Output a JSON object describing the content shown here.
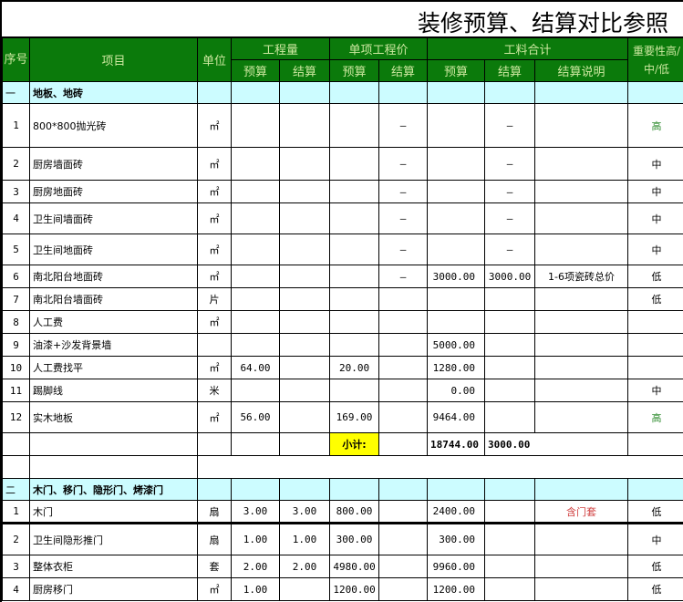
{
  "title": "装修预算、结算对比参照",
  "headers": {
    "seq": "序号",
    "item": "项目",
    "unit": "单位",
    "quantity": "工程量",
    "unit_price": "单项工程价",
    "total": "工料合计",
    "importance": "重要性高/中/低",
    "budget": "预算",
    "settlement": "结算",
    "settlement_note": "结算说明"
  },
  "colors": {
    "header_bg": "#0b7a0b",
    "section_bg": "#ccfcff",
    "subtotal_bg": "#ffff00",
    "high": "#2e8b2e",
    "note_red": "#d04040"
  },
  "sections": [
    {
      "seq": "一",
      "name": "地板、地砖",
      "rows": [
        {
          "seq": "1",
          "item": "800*800抛光砖",
          "unit": "㎡",
          "qb": "",
          "qs": "",
          "pb": "",
          "ps": "—",
          "tb": "",
          "ts": "—",
          "note": "",
          "imp": "高",
          "h": 48
        },
        {
          "seq": "2",
          "item": "厨房墙面砖",
          "unit": "㎡",
          "qb": "",
          "qs": "",
          "pb": "",
          "ps": "—",
          "tb": "",
          "ts": "—",
          "note": "",
          "imp": "中",
          "h": 36
        },
        {
          "seq": "3",
          "item": "厨房地面砖",
          "unit": "㎡",
          "qb": "",
          "qs": "",
          "pb": "",
          "ps": "—",
          "tb": "",
          "ts": "—",
          "note": "",
          "imp": "中",
          "h": 25
        },
        {
          "seq": "4",
          "item": "卫生间墙面砖",
          "unit": "㎡",
          "qb": "",
          "qs": "",
          "pb": "",
          "ps": "—",
          "tb": "",
          "ts": "—",
          "note": "",
          "imp": "中",
          "h": 34
        },
        {
          "seq": "5",
          "item": "卫生间地面砖",
          "unit": "㎡",
          "qb": "",
          "qs": "",
          "pb": "",
          "ps": "—",
          "tb": "",
          "ts": "—",
          "note": "",
          "imp": "中",
          "h": 34
        },
        {
          "seq": "6",
          "item": "南北阳台地面砖",
          "unit": "㎡",
          "qb": "",
          "qs": "",
          "pb": "",
          "ps": "—",
          "tb": "3000.00",
          "ts": "3000.00",
          "note": "1-6项瓷砖总价",
          "imp": "低",
          "h": 25
        },
        {
          "seq": "7",
          "item": "南北阳台墙面砖",
          "unit": "片",
          "qb": "",
          "qs": "",
          "pb": "",
          "ps": "",
          "tb": "",
          "ts": "",
          "note": "",
          "imp": "低",
          "h": 25
        },
        {
          "seq": "8",
          "item": "人工费",
          "unit": "㎡",
          "qb": "",
          "qs": "",
          "pb": "",
          "ps": "",
          "tb": "",
          "ts": "",
          "note": "",
          "imp": "",
          "h": 25
        },
        {
          "seq": "9",
          "item": "油漆+沙发背景墙",
          "unit": "",
          "qb": "",
          "qs": "",
          "pb": "",
          "ps": "",
          "tb": "5000.00",
          "ts": "",
          "note": "",
          "imp": "",
          "h": 25
        },
        {
          "seq": "10",
          "item": "人工费找平",
          "unit": "㎡",
          "qb": "64.00",
          "qs": "",
          "pb": "20.00",
          "ps": "",
          "tb": "1280.00",
          "ts": "",
          "note": "",
          "imp": "",
          "h": 25
        },
        {
          "seq": "11",
          "item": "踢脚线",
          "unit": "米",
          "qb": "",
          "qs": "",
          "pb": "",
          "ps": "",
          "tb": "0.00",
          "ts": "",
          "note": "",
          "imp": "中",
          "h": 25
        },
        {
          "seq": "12",
          "item": "实木地板",
          "unit": "㎡",
          "qb": "56.00",
          "qs": "",
          "pb": "169.00",
          "ps": "",
          "tb": "9464.00",
          "ts": "",
          "note": "",
          "imp": "高",
          "h": 34
        }
      ],
      "subtotal": {
        "label": "小计:",
        "budget": "18744.00",
        "settlement": "3000.00"
      }
    },
    {
      "seq": "二",
      "name": "木门、移门、隐形门、烤漆门",
      "rows": [
        {
          "seq": "1",
          "item": "木门",
          "unit": "扇",
          "qb": "3.00",
          "qs": "3.00",
          "pb": "800.00",
          "ps": "",
          "tb": "2400.00",
          "ts": "",
          "note": "含门套",
          "imp": "低",
          "h": 25
        },
        {
          "seq": "2",
          "item": "卫生间隐形推门",
          "unit": "扇",
          "qb": "1.00",
          "qs": "1.00",
          "pb": "300.00",
          "ps": "",
          "tb": "300.00",
          "ts": "",
          "note": "",
          "imp": "中",
          "h": 35
        },
        {
          "seq": "3",
          "item": "整体衣柜",
          "unit": "套",
          "qb": "2.00",
          "qs": "2.00",
          "pb": "4980.00",
          "ps": "",
          "tb": "9960.00",
          "ts": "",
          "note": "",
          "imp": "低",
          "h": 25
        },
        {
          "seq": "4",
          "item": "厨房移门",
          "unit": "㎡",
          "qb": "1.00",
          "qs": "",
          "pb": "1200.00",
          "ps": "",
          "tb": "1200.00",
          "ts": "",
          "note": "",
          "imp": "低",
          "h": 25
        }
      ]
    }
  ]
}
